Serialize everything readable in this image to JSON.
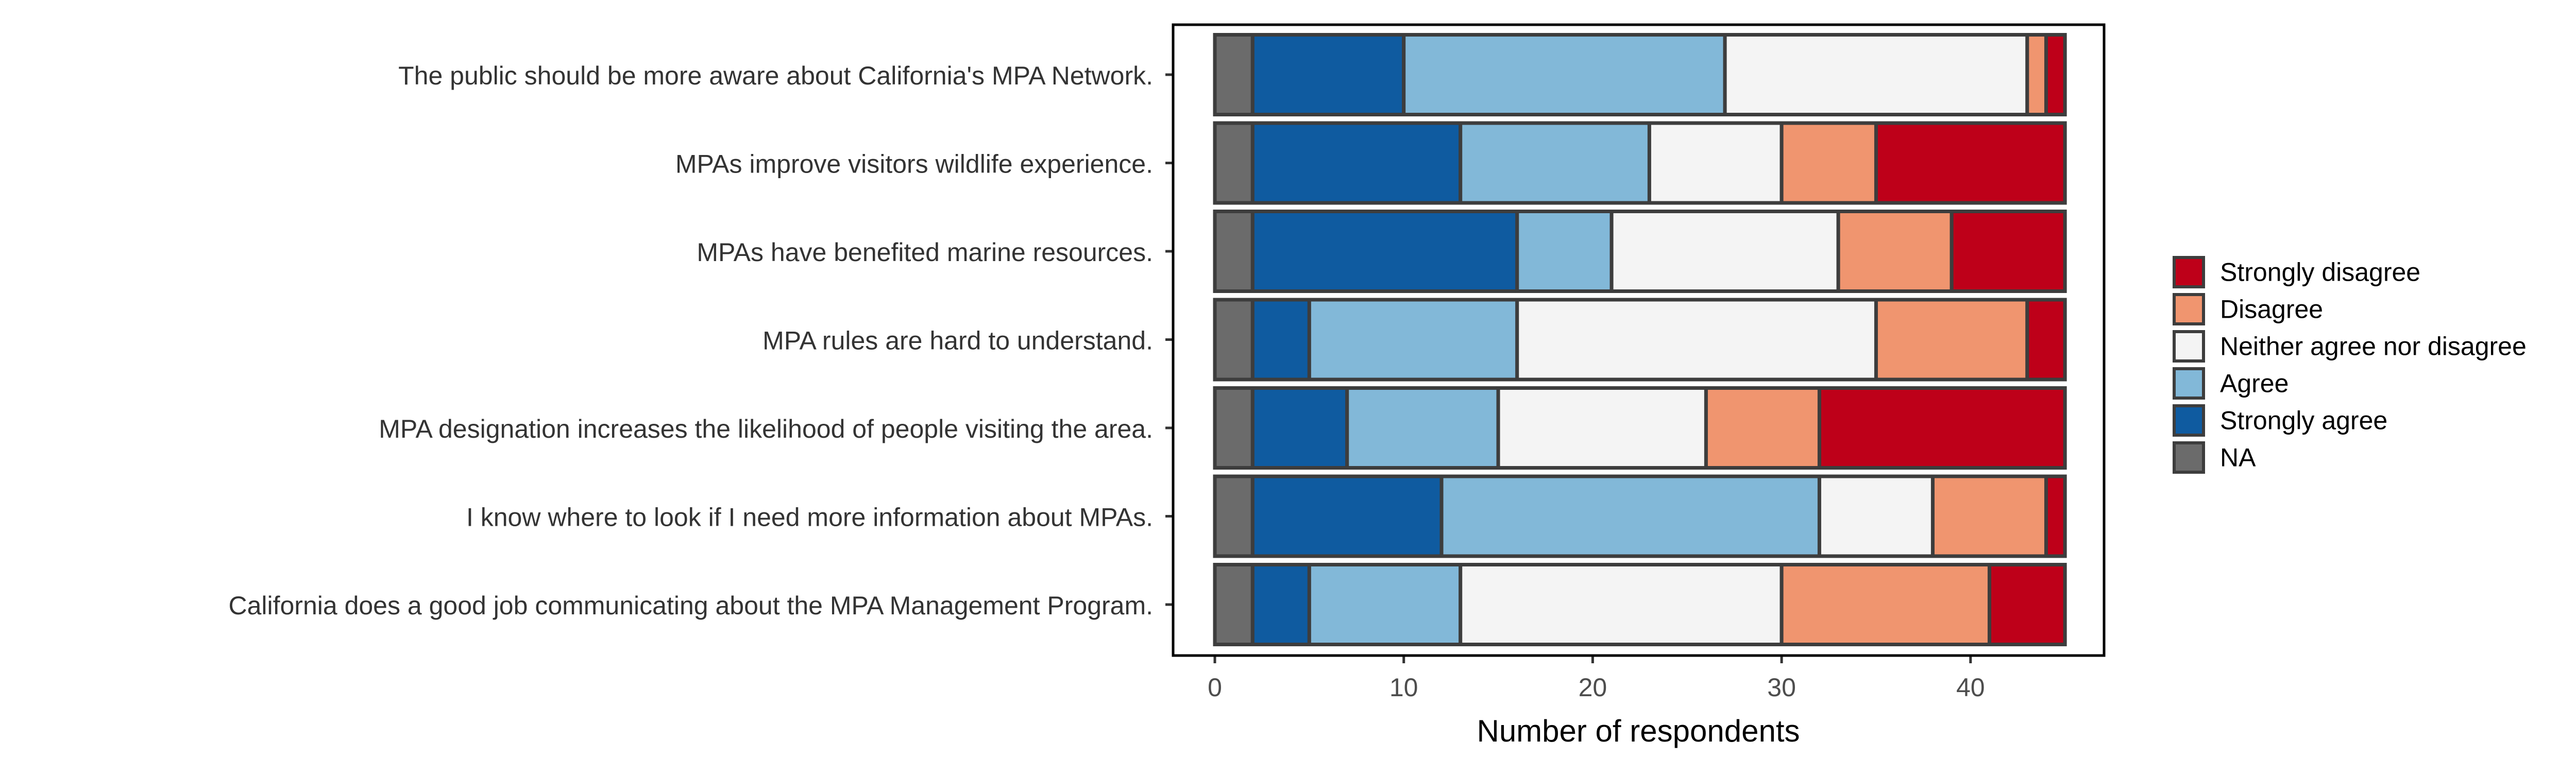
{
  "chart_data": {
    "type": "bar",
    "orientation": "horizontal",
    "stacked": true,
    "title": "",
    "xlabel": "Number of respondents",
    "ylabel": "",
    "xlim": [
      0,
      45
    ],
    "xticks": [
      0,
      10,
      20,
      30,
      40
    ],
    "grid": false,
    "legend_position": "right",
    "categories": [
      "The public should be more aware about California's MPA Network.",
      "MPAs improve visitors wildlife experience.",
      "MPAs have benefited marine resources.",
      "MPA rules are hard to understand.",
      "MPA designation increases the likelihood of people visiting the area.",
      "I know where to look if I need more information about MPAs.",
      "California does a good job communicating about the MPA Management Program."
    ],
    "series": [
      {
        "name": "NA",
        "color": "#6b6b6b",
        "values": [
          2,
          2,
          2,
          2,
          2,
          2,
          2
        ]
      },
      {
        "name": "Strongly agree",
        "color": "#0f5ba0",
        "values": [
          8,
          11,
          14,
          3,
          5,
          10,
          3
        ]
      },
      {
        "name": "Agree",
        "color": "#82b8d8",
        "values": [
          17,
          10,
          5,
          11,
          8,
          20,
          8
        ]
      },
      {
        "name": "Neither agree nor disagree",
        "color": "#f4f4f4",
        "values": [
          16,
          7,
          12,
          19,
          11,
          6,
          17
        ]
      },
      {
        "name": "Disagree",
        "color": "#f0956f",
        "values": [
          1,
          5,
          6,
          8,
          6,
          6,
          11
        ]
      },
      {
        "name": "Strongly disagree",
        "color": "#be0019",
        "values": [
          1,
          10,
          6,
          2,
          13,
          1,
          4
        ]
      }
    ],
    "legend_order": [
      "Strongly disagree",
      "Disagree",
      "Neither agree nor disagree",
      "Agree",
      "Strongly agree",
      "NA"
    ]
  }
}
